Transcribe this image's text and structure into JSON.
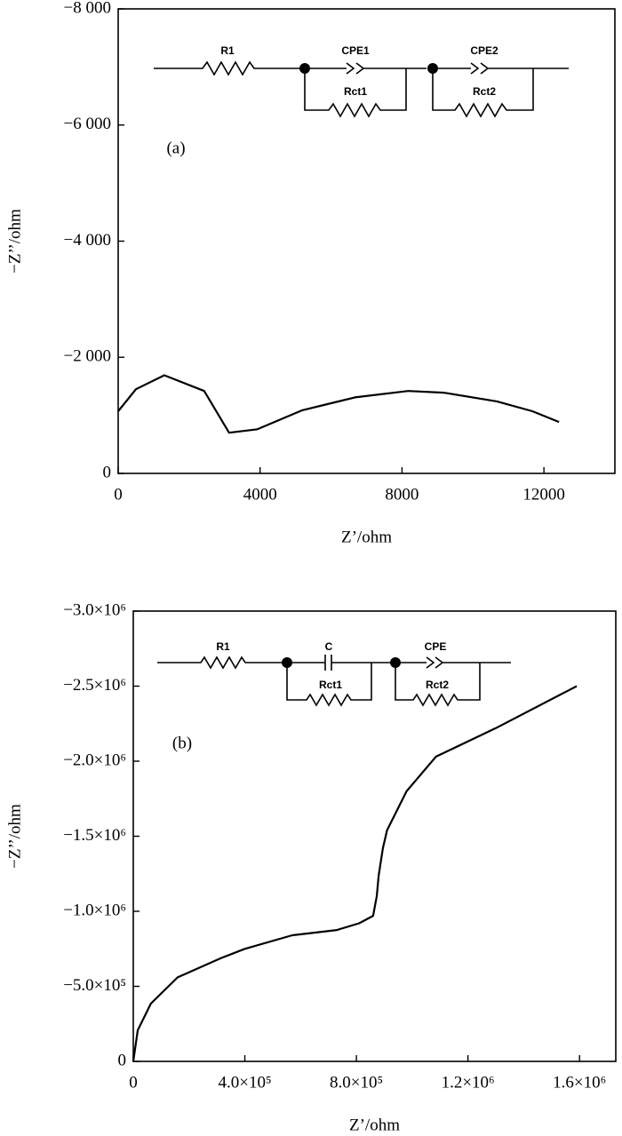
{
  "chart_data": [
    {
      "type": "line",
      "annotation": "(a)",
      "circuit_labels": [
        "R1",
        "CPE1",
        "Rct1",
        "CPE2",
        "Rct2"
      ],
      "x_label": "Z’/ohm",
      "y_label": "−Z’’/ohm",
      "xlim": [
        0,
        14000
      ],
      "ylim": [
        0,
        -8000
      ],
      "xticks": [
        0,
        4000,
        8000,
        12000
      ],
      "yticks": [
        0,
        {
          "value": -2000,
          "label": "−2 000"
        },
        {
          "value": -4000,
          "label": "−4 000"
        },
        {
          "value": -6000,
          "label": "−6 000"
        },
        {
          "value": -8000,
          "label": "−8 000"
        }
      ],
      "color": "#000000",
      "x": [
        0,
        500,
        1300,
        2425,
        3125,
        3925,
        5175,
        6675,
        8175,
        9175,
        10675,
        11675,
        12425
      ],
      "values": [
        -1070,
        -1450,
        -1690,
        -1420,
        -700,
        -760,
        -1085,
        -1310,
        -1420,
        -1390,
        -1240,
        -1070,
        -885
      ]
    },
    {
      "type": "line",
      "annotation": "(b)",
      "circuit_labels": [
        "R1",
        "C",
        "Rct1",
        "CPE",
        "Rct2"
      ],
      "x_label": "Z’/ohm",
      "y_label": "−Z’’/ohm",
      "xlim": [
        0,
        1730000
      ],
      "ylim": [
        0,
        -3000000
      ],
      "xticks": [
        0,
        {
          "value": 400000,
          "label": "4.0×10⁵"
        },
        {
          "value": 800000,
          "label": "8.0×10⁵"
        },
        {
          "value": 1200000,
          "label": "1.2×10⁶"
        },
        {
          "value": 1600000,
          "label": "1.6×10⁶"
        }
      ],
      "yticks": [
        0,
        {
          "value": -500000,
          "label": "−5.0×10⁵"
        },
        {
          "value": -1000000,
          "label": "−1.0×10⁶"
        },
        {
          "value": -1500000,
          "label": "−1.5×10⁶"
        },
        {
          "value": -2000000,
          "label": "−2.0×10⁶"
        },
        {
          "value": -2500000,
          "label": "−2.5×10⁶"
        },
        {
          "value": -3000000,
          "label": "−3.0×10⁶"
        }
      ],
      "color": "#000000",
      "x": [
        0,
        16000,
        63000,
        159000,
        317000,
        400000,
        570000,
        730000,
        810000,
        860000,
        873000,
        880000,
        895000,
        910000,
        980000,
        1085000,
        1300000,
        1590000
      ],
      "values": [
        0,
        -207000,
        -385000,
        -560000,
        -690000,
        -750000,
        -840000,
        -875000,
        -920000,
        -970000,
        -1100000,
        -1240000,
        -1420000,
        -1540000,
        -1800000,
        -2030000,
        -2220000,
        -2500000
      ]
    }
  ]
}
